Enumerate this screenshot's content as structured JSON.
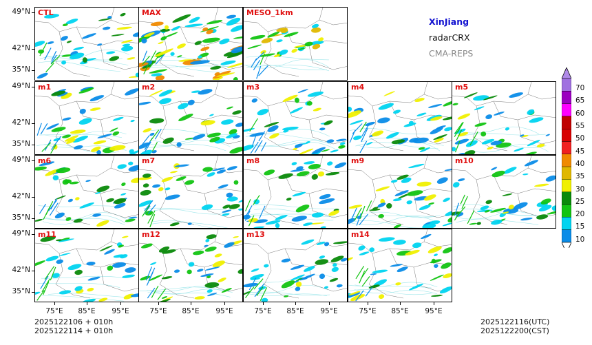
{
  "legend": {
    "region": "XinJiang",
    "variable": "radarCRX",
    "model": "CMA-REPS",
    "colors": {
      "region": "#1010d0",
      "variable": "#111111",
      "model": "#888888"
    }
  },
  "panels": {
    "row0": [
      "CTL",
      "MAX",
      "MESO_1km"
    ],
    "row1": [
      "m1",
      "m2",
      "m3",
      "m4",
      "m5"
    ],
    "row2": [
      "m6",
      "m7",
      "m8",
      "m9",
      "m10"
    ],
    "row3": [
      "m11",
      "m12",
      "m13",
      "m14"
    ]
  },
  "axes": {
    "y_ticks": [
      "49°N",
      "42°N",
      "35°N"
    ],
    "x_ticks": [
      "75°E",
      "85°E",
      "95°E"
    ]
  },
  "time": {
    "init_line1": "2025122106  +  010h",
    "init_line2": "2025122114  +  010h",
    "valid_utc": "2025122116(UTC)",
    "valid_cst": "2025122200(CST)"
  },
  "colorbar": {
    "levels": [
      "70",
      "65",
      "60",
      "55",
      "50",
      "45",
      "40",
      "35",
      "30",
      "25",
      "20",
      "15",
      "10"
    ],
    "colors": [
      "#0a8ce8",
      "#00d4f0",
      "#12c412",
      "#0a8a0a",
      "#f0f000",
      "#e0b800",
      "#f08a00",
      "#f02020",
      "#d80000",
      "#c00000",
      "#ff00ff",
      "#9b00c0",
      "#a070e0"
    ],
    "cap_top": "#b08ae8",
    "cap_bottom": "#ffffff"
  }
}
